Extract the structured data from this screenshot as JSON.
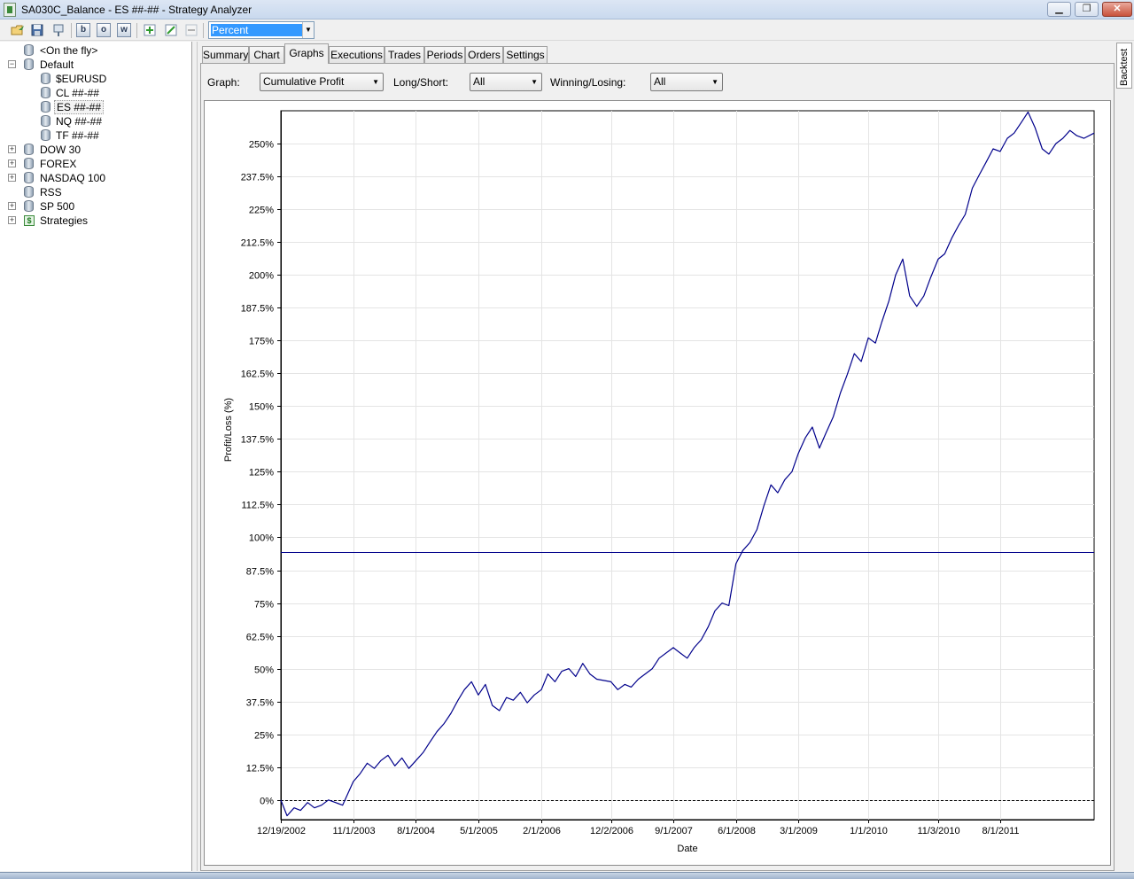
{
  "window": {
    "title": "SA030C_Balance - ES ##-## - Strategy Analyzer",
    "minimize": "▁",
    "maximize": "❐",
    "close": "✕"
  },
  "toolbar": {
    "buttons": [
      "open-icon",
      "save-icon",
      "pin-icon",
      "b",
      "o",
      "w",
      "add-icon",
      "edit-icon",
      "remove-icon"
    ],
    "display_mode": "Percent"
  },
  "tree": {
    "items": [
      {
        "label": "<On the fly>"
      },
      {
        "label": "Default",
        "expander": "−"
      },
      {
        "label": "$EURUSD"
      },
      {
        "label": "CL ##-##"
      },
      {
        "label": "ES ##-##"
      },
      {
        "label": "NQ ##-##"
      },
      {
        "label": "TF ##-##"
      },
      {
        "label": "DOW 30",
        "expander": "+"
      },
      {
        "label": "FOREX",
        "expander": "+"
      },
      {
        "label": "NASDAQ 100",
        "expander": "+"
      },
      {
        "label": "RSS"
      },
      {
        "label": "SP 500",
        "expander": "+"
      },
      {
        "label": "Strategies",
        "expander": "+",
        "icon": "$"
      }
    ]
  },
  "side_panel": {
    "tab": "Backtest"
  },
  "tabs": [
    "Summary",
    "Chart",
    "Graphs",
    "Executions",
    "Trades",
    "Periods",
    "Orders",
    "Settings"
  ],
  "active_tab": "Graphs",
  "filters": {
    "graph_label": "Graph:",
    "graph_value": "Cumulative Profit",
    "longshort_label": "Long/Short:",
    "longshort_value": "All",
    "winlose_label": "Winning/Losing:",
    "winlose_value": "All"
  },
  "colors": {
    "series": "#00008b",
    "grid": "#e4e4e4"
  },
  "chart_data": {
    "type": "line",
    "xlabel": "Date",
    "ylabel": "Profit/Loss (%)",
    "x_ticks": [
      "12/19/2002",
      "11/1/2003",
      "8/1/2004",
      "5/1/2005",
      "2/1/2006",
      "12/2/2006",
      "9/1/2007",
      "6/1/2008",
      "3/1/2009",
      "1/1/2010",
      "11/3/2010",
      "8/1/2011"
    ],
    "y_ticks": [
      "0%",
      "12.5%",
      "25%",
      "37.5%",
      "50%",
      "62.5%",
      "75%",
      "87.5%",
      "100%",
      "112.5%",
      "125%",
      "137.5%",
      "150%",
      "162.5%",
      "175%",
      "187.5%",
      "200%",
      "212.5%",
      "225%",
      "237.5%",
      "250%"
    ],
    "ylim": [
      -7.5,
      262.5
    ],
    "xlim": [
      "2002-12-19",
      "2012-09-15"
    ],
    "reference_lines": [
      {
        "y": 0,
        "style": "dashed"
      },
      {
        "y": 94.5,
        "style": "solid"
      }
    ],
    "series": [
      {
        "x": [
          "2002-12-19",
          "2003-01-15",
          "2003-02-15",
          "2003-03-15",
          "2003-04-15",
          "2003-05-15",
          "2003-06-15",
          "2003-07-15",
          "2003-08-15",
          "2003-09-15",
          "2003-11-01",
          "2003-12-01",
          "2004-01-01",
          "2004-02-01",
          "2004-03-01",
          "2004-04-01",
          "2004-05-01",
          "2004-06-01",
          "2004-07-01",
          "2004-08-01",
          "2004-09-01",
          "2004-10-01",
          "2004-11-01",
          "2004-12-01",
          "2005-01-01",
          "2005-02-01",
          "2005-03-01",
          "2005-04-01",
          "2005-05-01",
          "2005-06-01",
          "2005-07-01",
          "2005-08-01",
          "2005-09-01",
          "2005-10-01",
          "2005-11-01",
          "2005-12-01",
          "2006-01-01",
          "2006-02-01",
          "2006-03-01",
          "2006-04-01",
          "2006-05-01",
          "2006-06-01",
          "2006-07-01",
          "2006-08-01",
          "2006-09-01",
          "2006-10-01",
          "2006-12-02",
          "2007-01-01",
          "2007-02-01",
          "2007-03-01",
          "2007-04-01",
          "2007-05-01",
          "2007-06-01",
          "2007-07-01",
          "2007-09-01",
          "2007-10-01",
          "2007-11-01",
          "2007-12-01",
          "2008-01-01",
          "2008-02-01",
          "2008-03-01",
          "2008-04-01",
          "2008-05-01",
          "2008-06-01",
          "2008-07-01",
          "2008-08-01",
          "2008-09-01",
          "2008-10-01",
          "2008-11-01",
          "2008-12-01",
          "2009-01-01",
          "2009-02-01",
          "2009-03-01",
          "2009-04-01",
          "2009-05-01",
          "2009-06-01",
          "2009-07-01",
          "2009-08-01",
          "2009-09-01",
          "2009-10-01",
          "2009-11-01",
          "2009-12-01",
          "2010-01-01",
          "2010-02-01",
          "2010-03-01",
          "2010-04-01",
          "2010-05-01",
          "2010-06-01",
          "2010-07-01",
          "2010-08-01",
          "2010-09-01",
          "2010-10-01",
          "2010-11-03",
          "2010-12-01",
          "2011-01-01",
          "2011-02-01",
          "2011-03-01",
          "2011-04-01",
          "2011-05-01",
          "2011-06-01",
          "2011-07-01",
          "2011-08-01",
          "2011-09-01",
          "2011-10-01",
          "2011-11-01",
          "2011-12-01",
          "2012-01-01",
          "2012-02-01",
          "2012-03-01",
          "2012-04-01",
          "2012-05-01",
          "2012-06-01",
          "2012-07-01",
          "2012-08-01",
          "2012-09-15"
        ],
        "values": [
          0,
          -6,
          -3,
          -4,
          -1,
          -3,
          -2,
          0,
          -1,
          -2,
          7,
          10,
          14,
          12,
          15,
          17,
          13,
          16,
          12,
          15,
          18,
          22,
          26,
          29,
          33,
          38,
          42,
          45,
          40,
          44,
          36,
          34,
          39,
          38,
          41,
          37,
          40,
          42,
          48,
          45,
          49,
          50,
          47,
          52,
          48,
          46,
          45,
          42,
          44,
          43,
          46,
          48,
          50,
          54,
          58,
          56,
          54,
          58,
          61,
          66,
          72,
          75,
          74,
          90,
          95,
          98,
          103,
          112,
          120,
          117,
          122,
          125,
          132,
          138,
          142,
          134,
          140,
          146,
          155,
          162,
          170,
          167,
          176,
          174,
          182,
          190,
          200,
          206,
          192,
          188,
          192,
          199,
          206,
          208,
          214,
          219,
          223,
          233,
          238,
          243,
          248,
          247,
          252,
          254,
          258,
          262,
          256,
          248,
          246,
          250,
          252,
          255,
          253,
          252,
          254
        ]
      }
    ]
  }
}
